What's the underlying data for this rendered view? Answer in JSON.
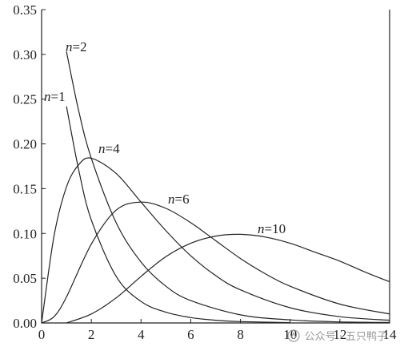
{
  "chart_data": {
    "type": "line",
    "title": "",
    "xlabel": "",
    "ylabel": "",
    "xlim": [
      0,
      14
    ],
    "ylim": [
      0,
      0.35
    ],
    "x_ticks": [
      "0",
      "2",
      "4",
      "6",
      "8",
      "10",
      "12",
      "14"
    ],
    "y_ticks": [
      "0.00",
      "0.05",
      "0.10",
      "0.15",
      "0.20",
      "0.25",
      "0.30",
      "0.35"
    ],
    "grid": false,
    "legend": "none (curve labels placed on plot)",
    "series": [
      {
        "label_prefix": "n",
        "label_suffix": "=1",
        "x": [
          1.0,
          1.5,
          2.0,
          3.0,
          4.0,
          5.0,
          6.0,
          7.0,
          8.0,
          10.0
        ],
        "y": [
          0.242,
          0.17,
          0.115,
          0.052,
          0.024,
          0.012,
          0.006,
          0.003,
          0.0015,
          0.0004
        ]
      },
      {
        "label_prefix": "n",
        "label_suffix": "=2",
        "x": [
          1.0,
          1.5,
          2.0,
          3.0,
          4.0,
          5.0,
          6.0,
          8.0,
          10.0,
          12.0,
          14.0
        ],
        "y": [
          0.303,
          0.236,
          0.184,
          0.112,
          0.068,
          0.041,
          0.025,
          0.009,
          0.0034,
          0.0012,
          0.0005
        ]
      },
      {
        "label_prefix": "n",
        "label_suffix": "=4",
        "x": [
          0.0,
          0.5,
          1.0,
          1.5,
          2.0,
          3.0,
          4.0,
          5.0,
          6.0,
          7.0,
          8.0,
          10.0,
          12.0,
          14.0
        ],
        "y": [
          0.0,
          0.097,
          0.152,
          0.177,
          0.184,
          0.167,
          0.135,
          0.103,
          0.075,
          0.053,
          0.037,
          0.017,
          0.007,
          0.003
        ]
      },
      {
        "label_prefix": "n",
        "label_suffix": "=6",
        "x": [
          0.0,
          0.5,
          1.0,
          2.0,
          3.0,
          4.0,
          5.0,
          6.0,
          7.0,
          8.0,
          9.0,
          10.0,
          12.0,
          14.0
        ],
        "y": [
          0.0,
          0.007,
          0.029,
          0.088,
          0.126,
          0.135,
          0.128,
          0.112,
          0.092,
          0.072,
          0.055,
          0.041,
          0.021,
          0.01
        ]
      },
      {
        "label_prefix": "n",
        "label_suffix": "=10",
        "x": [
          1.0,
          2.0,
          3.0,
          4.0,
          5.0,
          6.0,
          7.0,
          8.0,
          9.0,
          10.0,
          11.0,
          12.0,
          13.0,
          14.0
        ],
        "y": [
          0.0,
          0.01,
          0.028,
          0.052,
          0.074,
          0.089,
          0.097,
          0.099,
          0.096,
          0.089,
          0.079,
          0.069,
          0.057,
          0.046
        ]
      }
    ]
  },
  "watermark": {
    "text": "公众号 · 五只鸭子",
    "icon": "wechat-official-account-icon"
  }
}
